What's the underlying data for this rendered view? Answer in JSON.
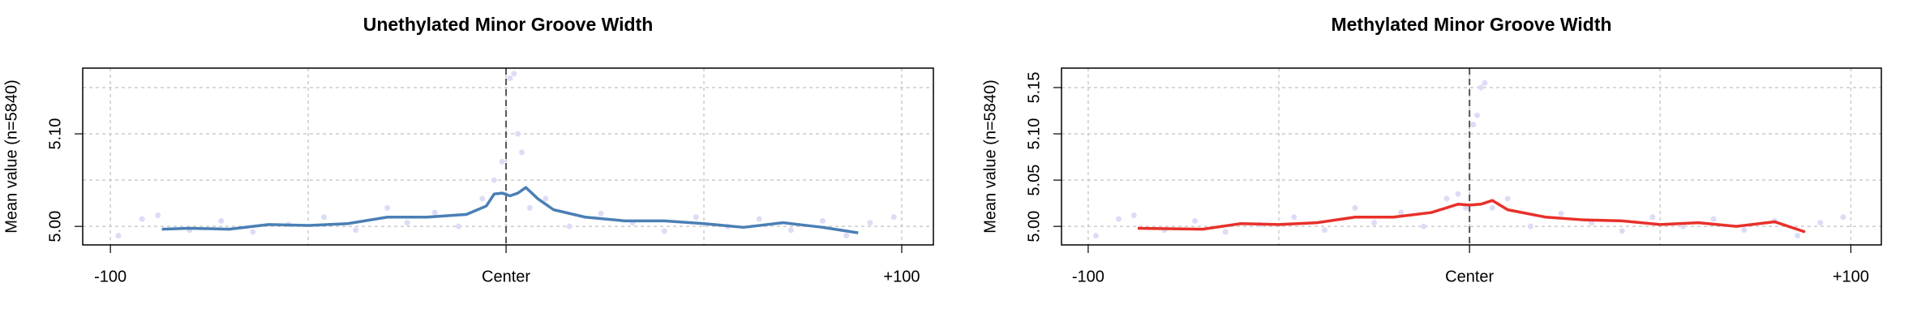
{
  "chart_data": [
    {
      "type": "line",
      "title": "Unethylated Minor Groove Width",
      "ylabel": "Mean value (n=5840)",
      "xlim": [
        -107,
        108
      ],
      "ylim": [
        4.98,
        5.171
      ],
      "xticks": [
        {
          "value": -100,
          "label": "-100"
        },
        {
          "value": 0,
          "label": "Center"
        },
        {
          "value": 100,
          "label": "+100"
        }
      ],
      "yticks": [
        {
          "value": 5,
          "label": "5.00"
        },
        {
          "value": 5.1,
          "label": "5.10"
        }
      ],
      "xgrid": [
        -100,
        -50,
        0,
        50,
        100
      ],
      "ygrid": [
        5,
        5.05,
        5.1,
        5.15
      ],
      "grid": true,
      "points": {
        "color": "#dcdcf6",
        "x": [
          -98,
          -92,
          -88,
          -80,
          -72,
          -64,
          -55,
          -46,
          -38,
          -30,
          -25,
          -18,
          -12,
          -6,
          -3,
          -1,
          1,
          2,
          3,
          4,
          6,
          10,
          16,
          24,
          32,
          40,
          48,
          56,
          64,
          72,
          80,
          86,
          92,
          98
        ],
        "values": [
          4.99,
          5.008,
          5.012,
          4.996,
          5.006,
          4.994,
          5.002,
          5.01,
          4.996,
          5.02,
          5.004,
          5.015,
          5.0,
          5.03,
          5.05,
          5.07,
          5.16,
          5.165,
          5.1,
          5.08,
          5.02,
          5.03,
          5.0,
          5.014,
          5.004,
          4.995,
          5.01,
          5.0,
          5.008,
          4.996,
          5.006,
          4.99,
          5.004,
          5.01
        ]
      },
      "series": [
        {
          "color": "#4a7fb5",
          "x": [
            -87,
            -80,
            -70,
            -60,
            -50,
            -40,
            -30,
            -20,
            -10,
            -5,
            -3,
            -1,
            1,
            3,
            5,
            8,
            12,
            20,
            30,
            40,
            50,
            60,
            70,
            80,
            89
          ],
          "values": [
            4.997,
            4.998,
            4.997,
            5.002,
            5.001,
            5.003,
            5.01,
            5.01,
            5.013,
            5.022,
            5.035,
            5.036,
            5.033,
            5.036,
            5.042,
            5.03,
            5.018,
            5.01,
            5.006,
            5.006,
            5.003,
            4.999,
            5.004,
            4.999,
            4.993
          ]
        }
      ]
    },
    {
      "type": "line",
      "title": "Methylated Minor Groove Width",
      "ylabel": "Mean value (n=5840)",
      "xlim": [
        -107,
        108
      ],
      "ylim": [
        4.98,
        5.171
      ],
      "xticks": [
        {
          "value": -100,
          "label": "-100"
        },
        {
          "value": 0,
          "label": "Center"
        },
        {
          "value": 100,
          "label": "+100"
        }
      ],
      "yticks": [
        {
          "value": 5,
          "label": "5.00"
        },
        {
          "value": 5.05,
          "label": "5.05"
        },
        {
          "value": 5.1,
          "label": "5.10"
        },
        {
          "value": 5.15,
          "label": "5.15"
        }
      ],
      "xgrid": [
        -100,
        -50,
        0,
        50,
        100
      ],
      "ygrid": [
        5,
        5.05,
        5.1,
        5.15
      ],
      "grid": true,
      "points": {
        "color": "#dcdcf6",
        "x": [
          -98,
          -92,
          -88,
          -80,
          -72,
          -64,
          -55,
          -46,
          -38,
          -30,
          -25,
          -18,
          -12,
          -6,
          -3,
          -1,
          1,
          2,
          3,
          4,
          6,
          10,
          16,
          24,
          32,
          40,
          48,
          56,
          64,
          72,
          80,
          86,
          92,
          98
        ],
        "values": [
          4.99,
          5.008,
          5.012,
          4.996,
          5.006,
          4.994,
          5.002,
          5.01,
          4.996,
          5.02,
          5.004,
          5.015,
          5.0,
          5.03,
          5.035,
          5.02,
          5.11,
          5.12,
          5.15,
          5.155,
          5.02,
          5.03,
          5.0,
          5.014,
          5.004,
          4.995,
          5.01,
          5.0,
          5.008,
          4.996,
          5.006,
          4.99,
          5.004,
          5.01
        ]
      },
      "series": [
        {
          "color": "#e8302a",
          "x": [
            -87,
            -70,
            -60,
            -50,
            -40,
            -30,
            -20,
            -10,
            -3,
            0,
            3,
            6,
            10,
            20,
            30,
            40,
            50,
            60,
            70,
            80,
            88
          ],
          "values": [
            4.998,
            4.997,
            5.003,
            5.002,
            5.004,
            5.01,
            5.01,
            5.015,
            5.024,
            5.023,
            5.024,
            5.028,
            5.018,
            5.01,
            5.007,
            5.006,
            5.002,
            5.004,
            5.0,
            5.005,
            4.994
          ]
        }
      ]
    }
  ]
}
